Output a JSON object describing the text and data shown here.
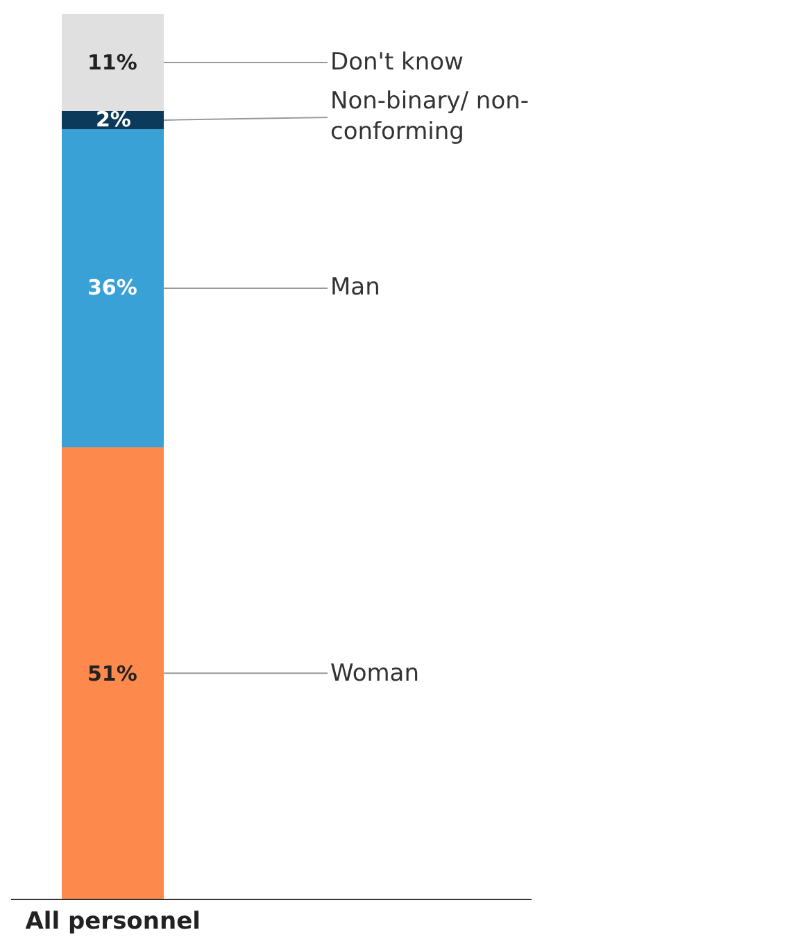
{
  "chart_data": {
    "type": "bar",
    "stacked": true,
    "categories": [
      "All personnel"
    ],
    "series": [
      {
        "name": "Woman",
        "color": "#fd8a4c",
        "values": [
          51
        ],
        "value_labels": [
          "51%"
        ]
      },
      {
        "name": "Man",
        "color": "#3aa1d6",
        "values": [
          36
        ],
        "value_labels": [
          "36%"
        ]
      },
      {
        "name": "Non-binary/ non-conforming",
        "color": "#0b3a5a",
        "values": [
          2
        ],
        "value_labels": [
          "2%"
        ]
      },
      {
        "name": "Don't know",
        "color": "#e0e0e0",
        "values": [
          11
        ],
        "value_labels": [
          "11%"
        ]
      }
    ],
    "ylim": [
      0,
      100
    ],
    "legend": false,
    "grid": false,
    "tick_labels": "x"
  }
}
